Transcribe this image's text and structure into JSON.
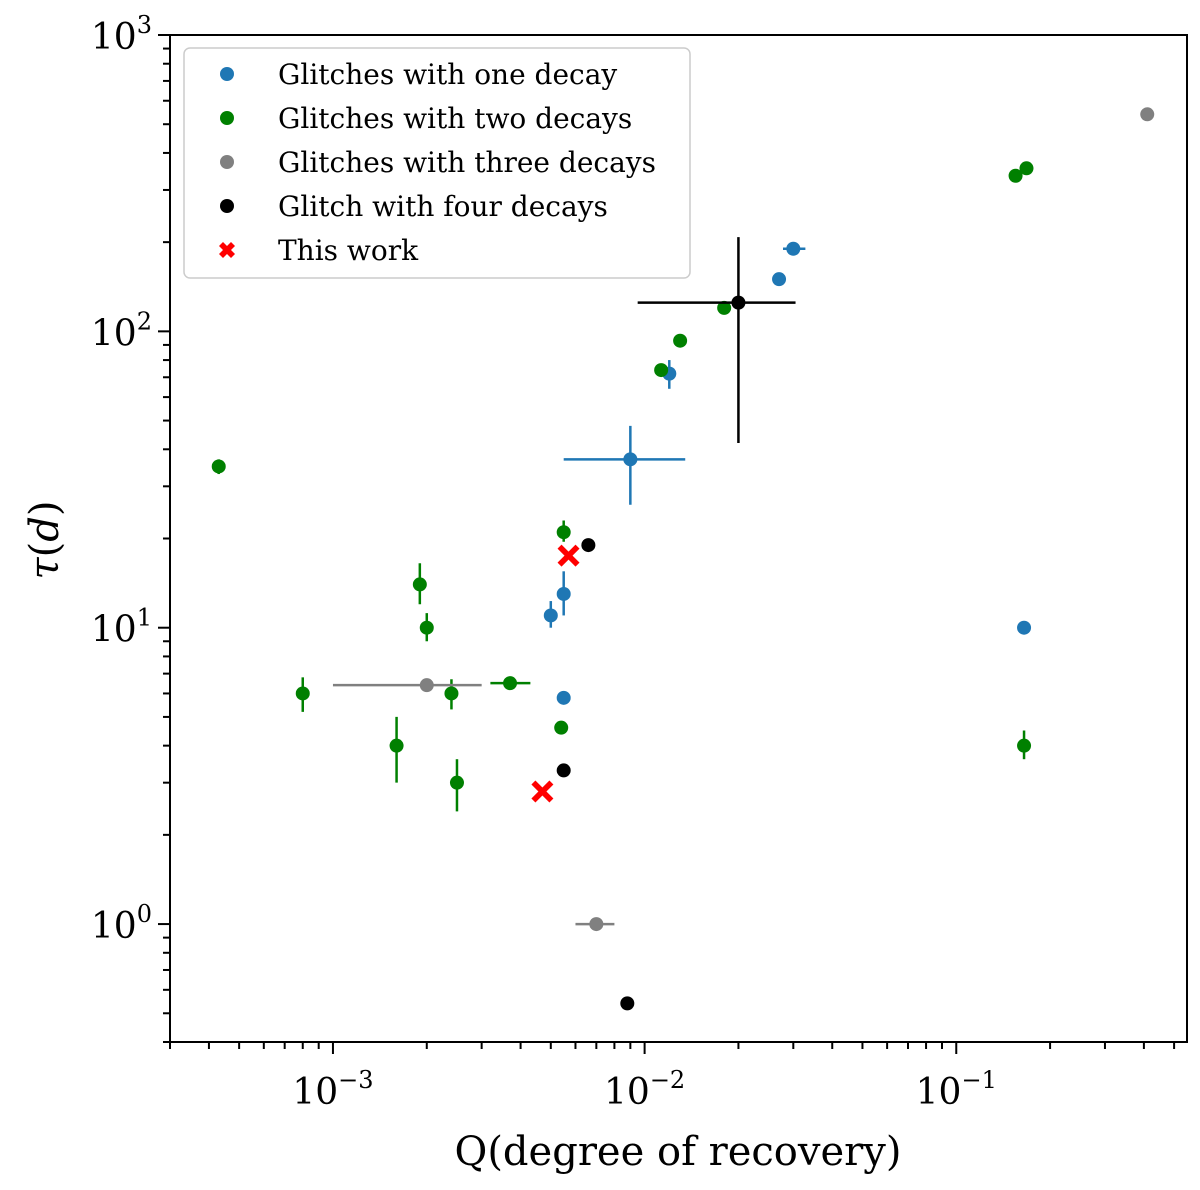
{
  "chart_data": {
    "type": "scatter",
    "title": "",
    "xlabel": "Q(degree of recovery)",
    "ylabel_symbol": "τ",
    "ylabel_unit": "d",
    "xscale": "log",
    "yscale": "log",
    "xlim": [
      0.0003,
      0.55
    ],
    "ylim": [
      0.4,
      1000
    ],
    "x_ticks": [
      {
        "value": 0.001,
        "base": "10",
        "exp": "−3"
      },
      {
        "value": 0.01,
        "base": "10",
        "exp": "−2"
      },
      {
        "value": 0.1,
        "base": "10",
        "exp": "−1"
      }
    ],
    "y_ticks": [
      {
        "value": 1,
        "base": "10",
        "exp": "0"
      },
      {
        "value": 10,
        "base": "10",
        "exp": "1"
      },
      {
        "value": 100,
        "base": "10",
        "exp": "2"
      },
      {
        "value": 1000,
        "base": "10",
        "exp": "3"
      }
    ],
    "legend_position": "top-left",
    "series": [
      {
        "name": "Glitches with one decay",
        "color": "#1f77b4",
        "marker": "circle",
        "points": [
          {
            "x": 0.03,
            "y": 190,
            "xerr": [
              0.0278,
              0.0328
            ]
          },
          {
            "x": 0.027,
            "y": 150
          },
          {
            "x": 0.012,
            "y": 72,
            "yerr": [
              64,
              80
            ]
          },
          {
            "x": 0.009,
            "y": 37,
            "xerr": [
              0.0055,
              0.0135
            ],
            "yerr": [
              26,
              48
            ]
          },
          {
            "x": 0.0055,
            "y": 13,
            "yerr": [
              11,
              15.5
            ]
          },
          {
            "x": 0.005,
            "y": 11,
            "yerr": [
              10,
              12.3
            ]
          },
          {
            "x": 0.0055,
            "y": 5.8
          },
          {
            "x": 0.165,
            "y": 10
          }
        ]
      },
      {
        "name": "Glitches with two decays",
        "color": "#008000",
        "marker": "circle",
        "points": [
          {
            "x": 0.00043,
            "y": 35,
            "yerr": [
              33,
              37
            ]
          },
          {
            "x": 0.0019,
            "y": 14,
            "yerr": [
              12,
              16.5
            ]
          },
          {
            "x": 0.002,
            "y": 10,
            "yerr": [
              9,
              11.2
            ]
          },
          {
            "x": 0.0008,
            "y": 6,
            "yerr": [
              5.2,
              6.8
            ]
          },
          {
            "x": 0.0016,
            "y": 4,
            "yerr": [
              3,
              5
            ]
          },
          {
            "x": 0.0025,
            "y": 3,
            "yerr": [
              2.4,
              3.6
            ]
          },
          {
            "x": 0.0024,
            "y": 6,
            "yerr": [
              5.3,
              6.7
            ]
          },
          {
            "x": 0.0037,
            "y": 6.5,
            "xerr": [
              0.0032,
              0.0043
            ]
          },
          {
            "x": 0.0054,
            "y": 4.6
          },
          {
            "x": 0.0055,
            "y": 21,
            "yerr": [
              19.5,
              23
            ]
          },
          {
            "x": 0.0113,
            "y": 74
          },
          {
            "x": 0.013,
            "y": 93
          },
          {
            "x": 0.018,
            "y": 120
          },
          {
            "x": 0.155,
            "y": 335
          },
          {
            "x": 0.168,
            "y": 355
          },
          {
            "x": 0.165,
            "y": 4,
            "yerr": [
              3.6,
              4.5
            ]
          }
        ]
      },
      {
        "name": "Glitches with three decays",
        "color": "#808080",
        "marker": "circle",
        "points": [
          {
            "x": 0.41,
            "y": 540
          },
          {
            "x": 0.002,
            "y": 6.4,
            "xerr": [
              0.001,
              0.003
            ]
          },
          {
            "x": 0.007,
            "y": 1,
            "xerr": [
              0.006,
              0.008
            ]
          }
        ]
      },
      {
        "name": "Glitch with four decays",
        "color": "#000000",
        "marker": "circle",
        "points": [
          {
            "x": 0.02,
            "y": 125,
            "xerr": [
              0.0095,
              0.0305
            ],
            "yerr": [
              42,
              208
            ]
          },
          {
            "x": 0.0066,
            "y": 19
          },
          {
            "x": 0.0055,
            "y": 3.3
          },
          {
            "x": 0.0088,
            "y": 0.54
          }
        ]
      },
      {
        "name": "This work",
        "color": "#ff0000",
        "marker": "x",
        "points": [
          {
            "x": 0.0057,
            "y": 17.5
          },
          {
            "x": 0.0047,
            "y": 2.8
          }
        ]
      }
    ]
  }
}
